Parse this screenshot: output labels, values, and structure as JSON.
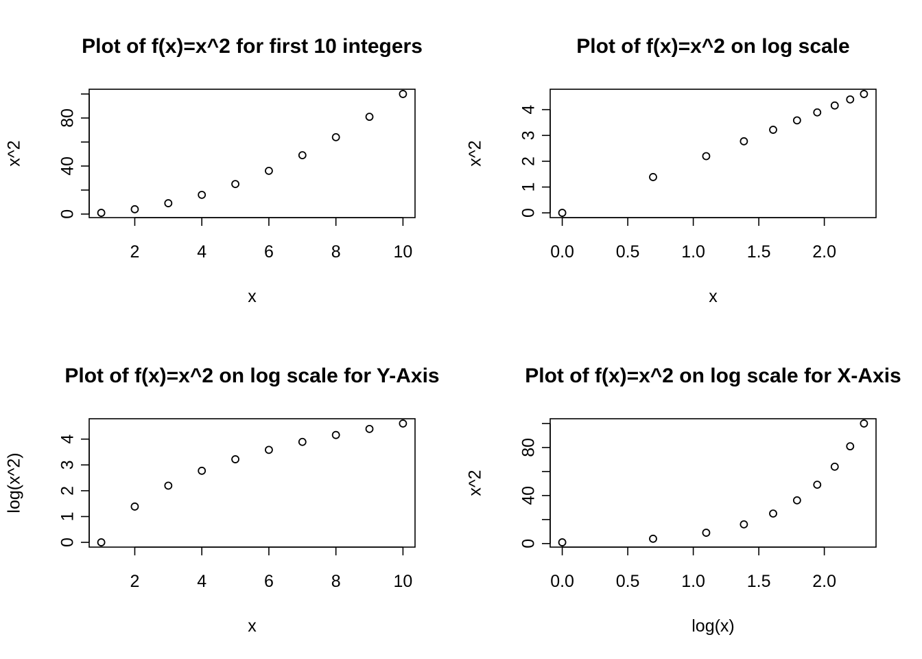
{
  "chart_data": [
    {
      "type": "scatter",
      "title": "Plot of f(x)=x^2 for first 10 integers",
      "xlabel": "x",
      "ylabel": "x^2",
      "xlim": [
        0.64,
        10.36
      ],
      "ylim": [
        -2.96,
        103.96
      ],
      "xticks": [
        2,
        4,
        6,
        8,
        10
      ],
      "xtick_labels": [
        "2",
        "4",
        "6",
        "8",
        "10"
      ],
      "yticks": [
        0,
        20,
        40,
        60,
        80,
        100
      ],
      "ytick_labels": [
        "0",
        "",
        "40",
        "",
        "80",
        ""
      ],
      "x": [
        1,
        2,
        3,
        4,
        5,
        6,
        7,
        8,
        9,
        10
      ],
      "y": [
        1,
        4,
        9,
        16,
        25,
        36,
        49,
        64,
        81,
        100
      ]
    },
    {
      "type": "scatter",
      "title": "Plot of f(x)=x^2 on log scale",
      "xlabel": "x",
      "ylabel": "x^2",
      "xlim": [
        -0.0921,
        2.3947
      ],
      "ylim": [
        -0.1842,
        4.7894
      ],
      "xticks": [
        0.0,
        0.5,
        1.0,
        1.5,
        2.0
      ],
      "xtick_labels": [
        "0.0",
        "0.5",
        "1.0",
        "1.5",
        "2.0"
      ],
      "yticks": [
        0,
        1,
        2,
        3,
        4
      ],
      "ytick_labels": [
        "0",
        "1",
        "2",
        "3",
        "4"
      ],
      "x": [
        0.0,
        0.6931,
        1.0986,
        1.3863,
        1.6094,
        1.7918,
        1.9459,
        2.0794,
        2.1972,
        2.3026
      ],
      "y": [
        0.0,
        1.3863,
        2.1972,
        2.7726,
        3.2189,
        3.5835,
        3.8918,
        4.1589,
        4.3944,
        4.6052
      ]
    },
    {
      "type": "scatter",
      "title": "Plot of f(x)=x^2 on log scale for Y-Axis",
      "xlabel": "x",
      "ylabel": "log(x^2)",
      "xlim": [
        0.64,
        10.36
      ],
      "ylim": [
        -0.1842,
        4.7894
      ],
      "xticks": [
        2,
        4,
        6,
        8,
        10
      ],
      "xtick_labels": [
        "2",
        "4",
        "6",
        "8",
        "10"
      ],
      "yticks": [
        0,
        1,
        2,
        3,
        4
      ],
      "ytick_labels": [
        "0",
        "1",
        "2",
        "3",
        "4"
      ],
      "x": [
        1,
        2,
        3,
        4,
        5,
        6,
        7,
        8,
        9,
        10
      ],
      "y": [
        0.0,
        1.3863,
        2.1972,
        2.7726,
        3.2189,
        3.5835,
        3.8918,
        4.1589,
        4.3944,
        4.6052
      ]
    },
    {
      "type": "scatter",
      "title": "Plot of f(x)=x^2 on log scale for X-Axis",
      "xlabel": "log(x)",
      "ylabel": "x^2",
      "xlim": [
        -0.0921,
        2.3947
      ],
      "ylim": [
        -2.96,
        103.96
      ],
      "xticks": [
        0.0,
        0.5,
        1.0,
        1.5,
        2.0
      ],
      "xtick_labels": [
        "0.0",
        "0.5",
        "1.0",
        "1.5",
        "2.0"
      ],
      "yticks": [
        0,
        20,
        40,
        60,
        80,
        100
      ],
      "ytick_labels": [
        "0",
        "",
        "40",
        "",
        "80",
        ""
      ],
      "x": [
        0.0,
        0.6931,
        1.0986,
        1.3863,
        1.6094,
        1.7918,
        1.9459,
        2.0794,
        2.1972,
        2.3026
      ],
      "y": [
        1,
        4,
        9,
        16,
        25,
        36,
        49,
        64,
        81,
        100
      ]
    }
  ]
}
